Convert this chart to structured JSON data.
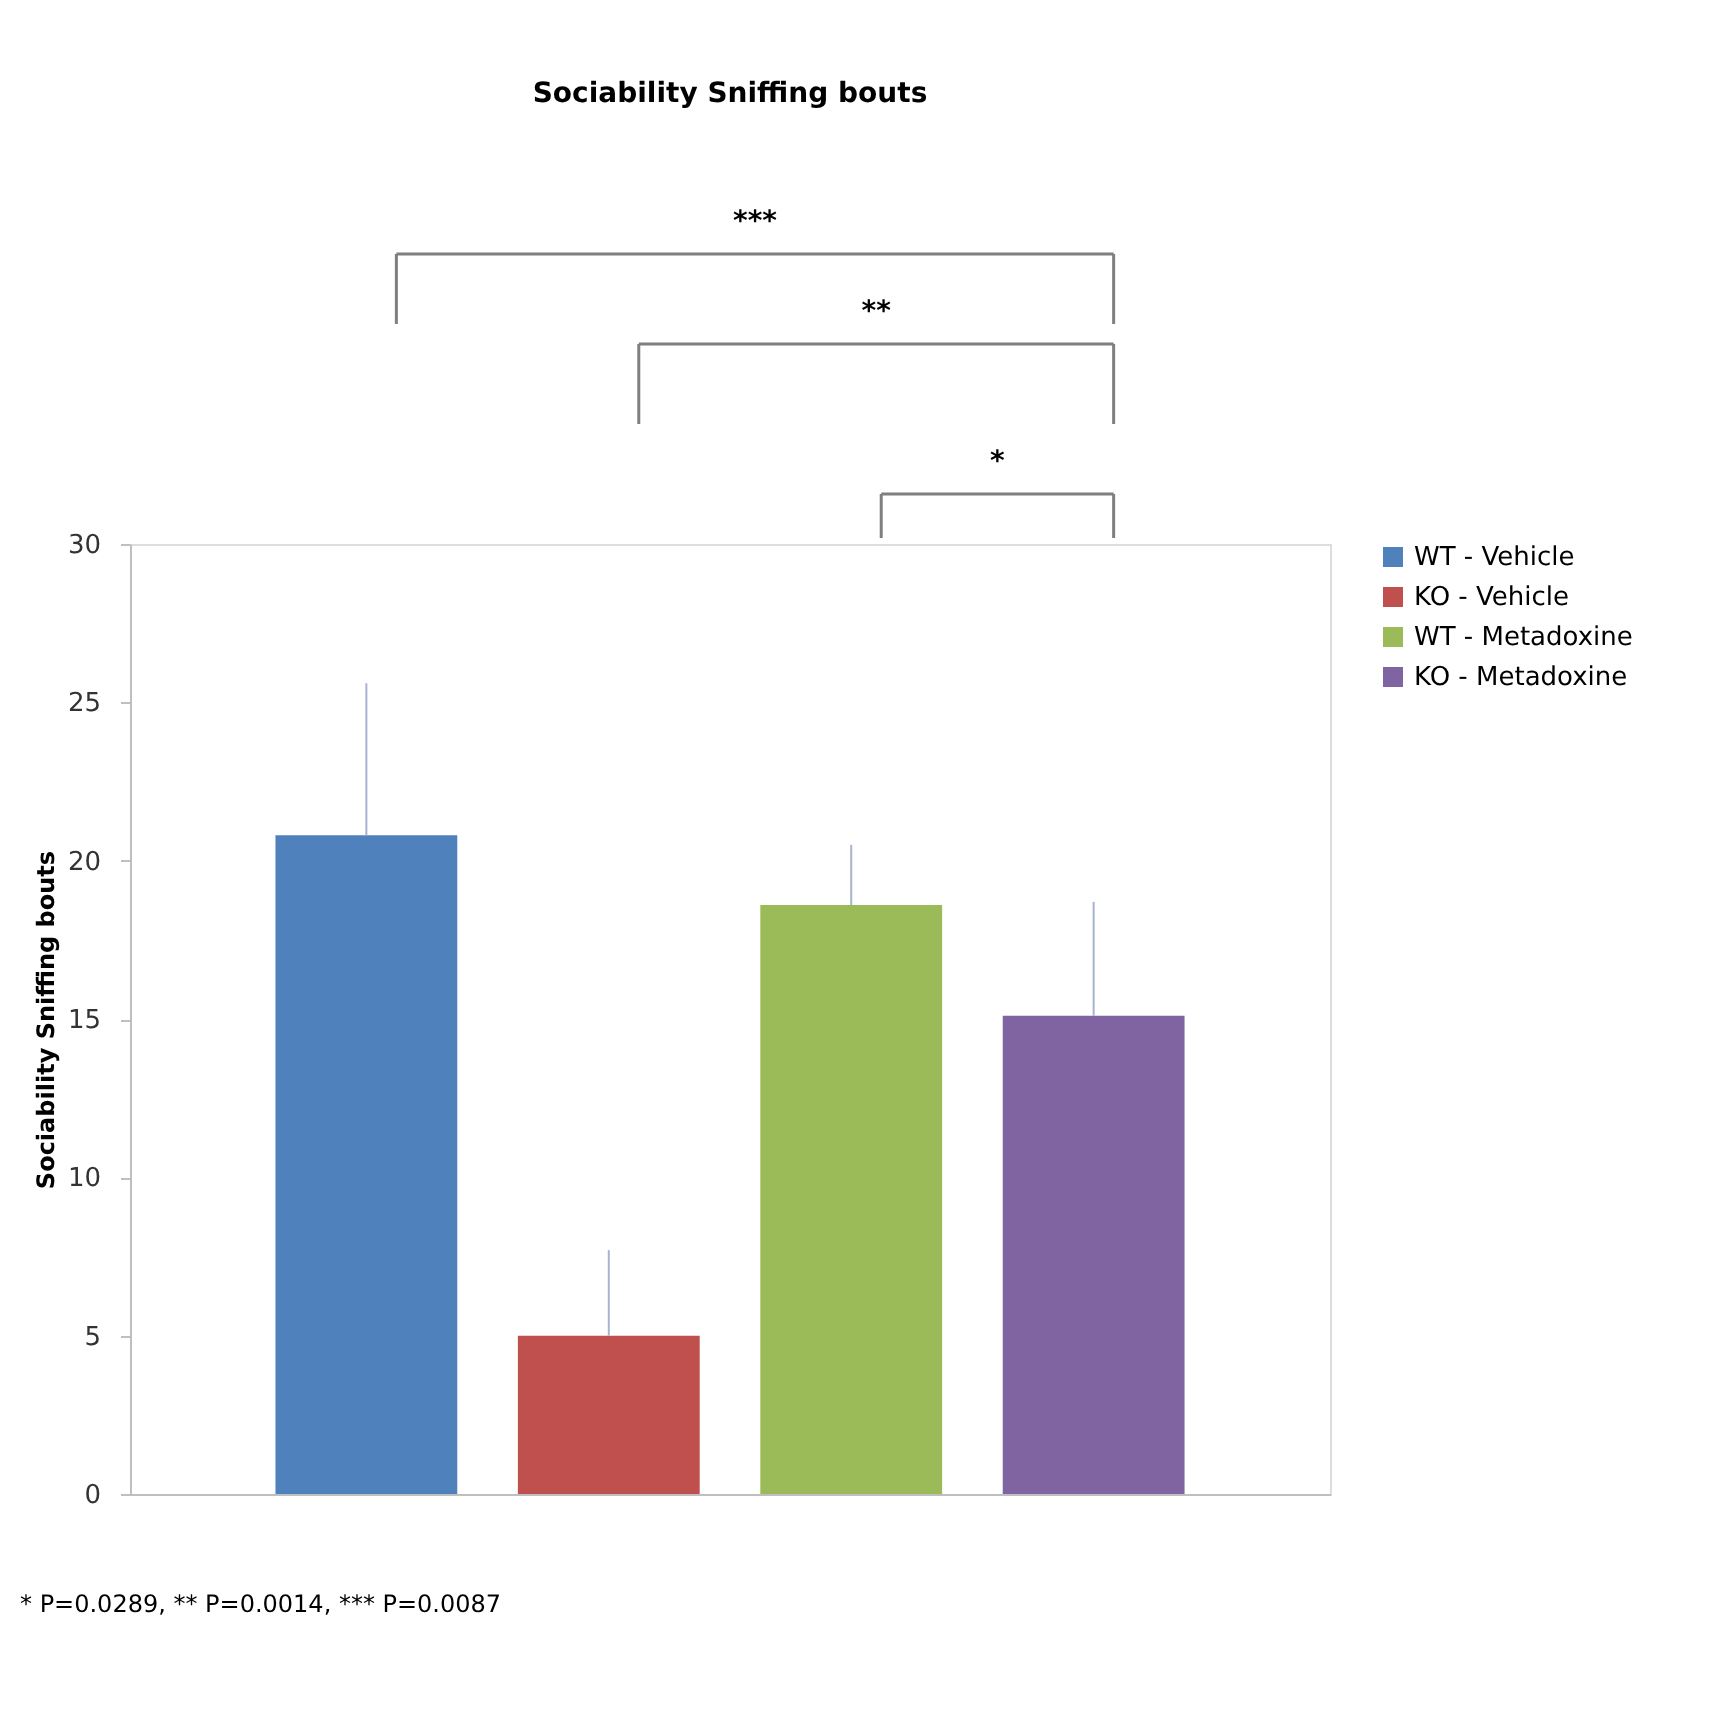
{
  "chart_data": {
    "type": "bar",
    "title": "Sociability Sniffing bouts",
    "ylabel": "Sociability Sniffing bouts",
    "categories": [
      null,
      null,
      null,
      null
    ],
    "stacked": true,
    "series": [
      {
        "name": "WT - Vehicle",
        "color": "#4f81bd",
        "values": [
          20.8,
          null,
          null,
          null
        ],
        "errors": [
          [
            20.8,
            25.6
          ],
          null,
          null,
          null
        ]
      },
      {
        "name": "KO - Vehicle",
        "color": "#c0504d",
        "values": [
          null,
          5.0,
          null,
          null
        ],
        "errors": [
          null,
          [
            5.0,
            7.7
          ],
          null,
          null
        ]
      },
      {
        "name": "WT - Metadoxine",
        "color": "#9bbb59",
        "values": [
          null,
          null,
          18.6,
          null
        ],
        "errors": [
          null,
          null,
          [
            18.6,
            20.5
          ],
          null
        ]
      },
      {
        "name": "KO - Metadoxine",
        "color": "#8064a2",
        "values": [
          null,
          null,
          null,
          15.1
        ],
        "errors": [
          null,
          null,
          null,
          [
            15.1,
            18.7
          ]
        ]
      }
    ],
    "ylim": [
      0,
      30
    ],
    "yticks": [
      0,
      5,
      10,
      15,
      20,
      25,
      30
    ],
    "grid": false,
    "legend": "right",
    "tick_labels": "y",
    "annotations": [
      "***",
      "**",
      "*",
      "* P=0.0289,  ** P=0.0014,  *** P=0.0087"
    ]
  }
}
